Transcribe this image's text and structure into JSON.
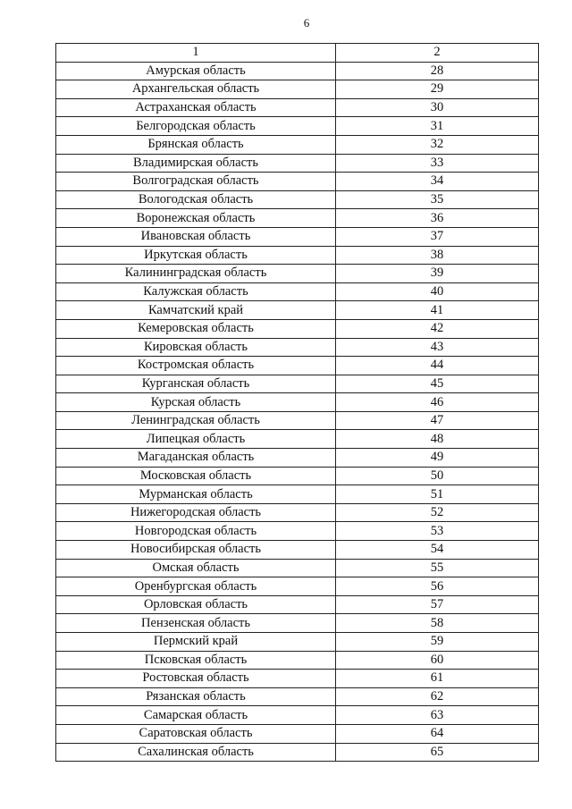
{
  "page_number": "6",
  "table": {
    "headers": [
      "1",
      "2"
    ],
    "rows": [
      [
        "Амурская область",
        "28"
      ],
      [
        "Архангельская область",
        "29"
      ],
      [
        "Астраханская область",
        "30"
      ],
      [
        "Белгородская область",
        "31"
      ],
      [
        "Брянская область",
        "32"
      ],
      [
        "Владимирская область",
        "33"
      ],
      [
        "Волгоградская область",
        "34"
      ],
      [
        "Вологодская область",
        "35"
      ],
      [
        "Воронежская область",
        "36"
      ],
      [
        "Ивановская область",
        "37"
      ],
      [
        "Иркутская область",
        "38"
      ],
      [
        "Калининградская область",
        "39"
      ],
      [
        "Калужская область",
        "40"
      ],
      [
        "Камчатский край",
        "41"
      ],
      [
        "Кемеровская область",
        "42"
      ],
      [
        "Кировская область",
        "43"
      ],
      [
        "Костромская область",
        "44"
      ],
      [
        "Курганская область",
        "45"
      ],
      [
        "Курская область",
        "46"
      ],
      [
        "Ленинградская область",
        "47"
      ],
      [
        "Липецкая область",
        "48"
      ],
      [
        "Магаданская область",
        "49"
      ],
      [
        "Московская область",
        "50"
      ],
      [
        "Мурманская область",
        "51"
      ],
      [
        "Нижегородская область",
        "52"
      ],
      [
        "Новгородская область",
        "53"
      ],
      [
        "Новосибирская область",
        "54"
      ],
      [
        "Омская область",
        "55"
      ],
      [
        "Оренбургская область",
        "56"
      ],
      [
        "Орловская область",
        "57"
      ],
      [
        "Пензенская область",
        "58"
      ],
      [
        "Пермский край",
        "59"
      ],
      [
        "Псковская область",
        "60"
      ],
      [
        "Ростовская область",
        "61"
      ],
      [
        "Рязанская область",
        "62"
      ],
      [
        "Самарская область",
        "63"
      ],
      [
        "Саратовская область",
        "64"
      ],
      [
        "Сахалинская область",
        "65"
      ]
    ]
  }
}
